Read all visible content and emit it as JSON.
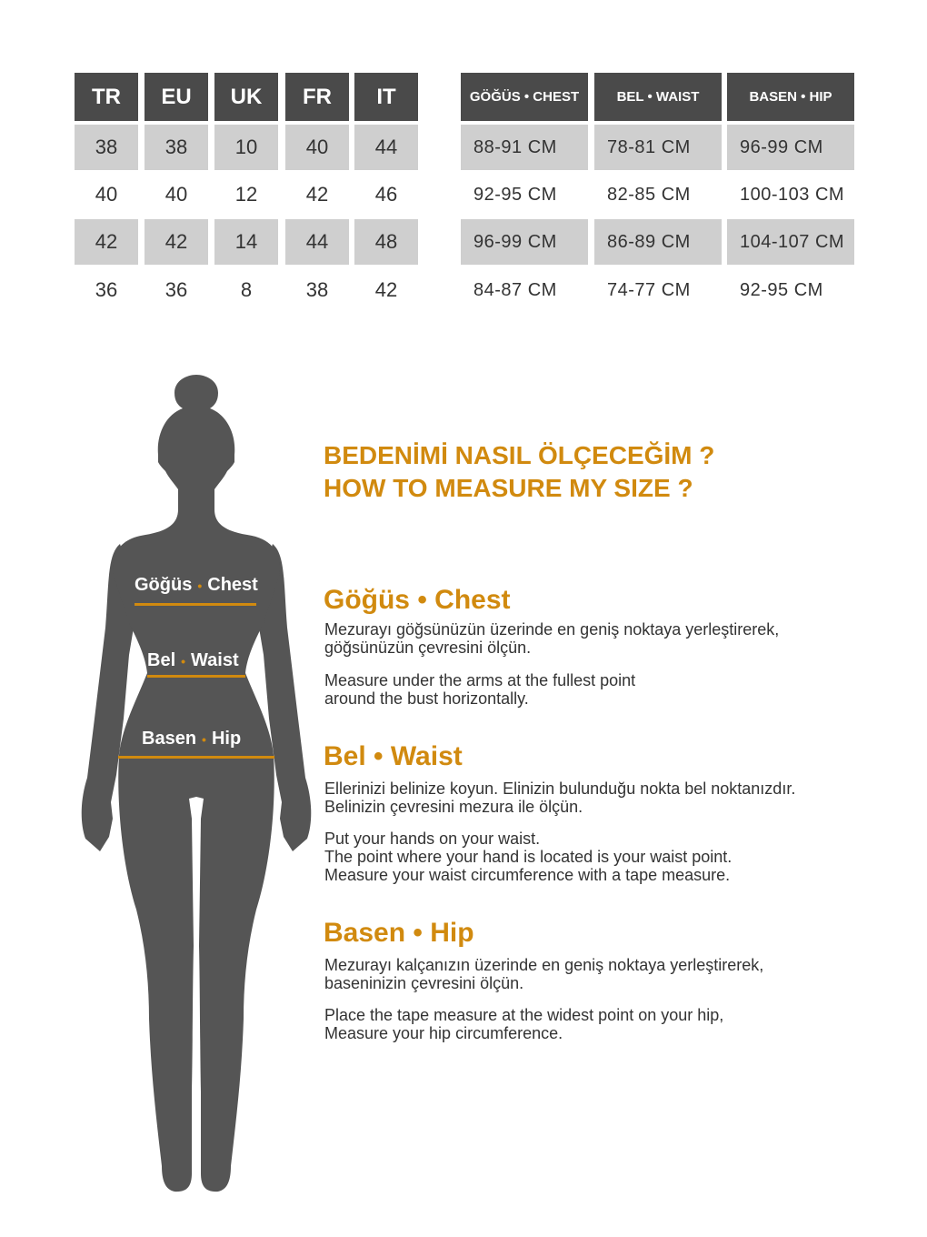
{
  "size_table": {
    "headers": [
      "TR",
      "EU",
      "UK",
      "FR",
      "IT"
    ],
    "rows": [
      [
        "38",
        "38",
        "10",
        "40",
        "44"
      ],
      [
        "40",
        "40",
        "12",
        "42",
        "46"
      ],
      [
        "42",
        "42",
        "14",
        "44",
        "48"
      ],
      [
        "36",
        "36",
        "8",
        "38",
        "42"
      ]
    ]
  },
  "measure_table": {
    "headers": [
      "GÖĞÜS • CHEST",
      "BEL • WAIST",
      "BASEN • HIP"
    ],
    "rows": [
      [
        "88-91 CM",
        "78-81 CM",
        "96-99 CM"
      ],
      [
        "92-95 CM",
        "82-85 CM",
        "100-103 CM"
      ],
      [
        "96-99 CM",
        "86-89 CM",
        "104-107 CM"
      ],
      [
        "84-87 CM",
        "74-77 CM",
        "92-95 CM"
      ]
    ]
  },
  "figure": {
    "chest": {
      "tr": "Göğüs",
      "en": "Chest"
    },
    "waist": {
      "tr": "Bel",
      "en": "Waist"
    },
    "hip": {
      "tr": "Basen",
      "en": "Hip"
    },
    "dot": "•"
  },
  "title": {
    "line1": "BEDENİMİ NASIL ÖLÇECEĞİM ?",
    "line2": "HOW TO MEASURE MY SIZE ?"
  },
  "sections": [
    {
      "heading": "Göğüs • Chest",
      "tr": "Mezurayı göğsünüzün üzerinde en geniş noktaya yerleştirerek,\ngöğsünüzün çevresini ölçün.",
      "en": "Measure under the arms at the fullest point\naround the bust horizontally."
    },
    {
      "heading": "Bel • Waist",
      "tr": "Ellerinizi belinize koyun. Elinizin bulunduğu nokta bel noktanızdır.\nBelinizin çevresini mezura ile ölçün.",
      "en": "Put your hands on your waist.\nThe point where your hand is located is your waist point.\nMeasure your waist circumference with a tape measure."
    },
    {
      "heading": "Basen • Hip",
      "tr": "Mezurayı kalçanızın üzerinde en geniş noktaya yerleştirerek,\nbaseninizin çevresini ölçün.",
      "en": "Place the tape measure at the widest point on your hip,\nMeasure your hip circumference."
    }
  ],
  "colors": {
    "header": "#4a4a4a",
    "stripe": "#cfcfcf",
    "accent": "#d18a0f",
    "silhouette": "#555555"
  }
}
